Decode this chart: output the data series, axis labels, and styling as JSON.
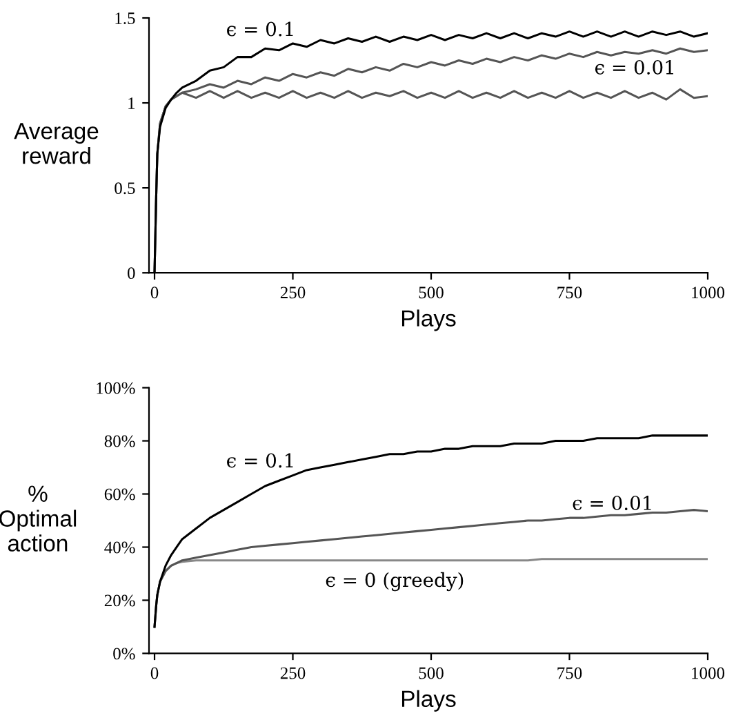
{
  "chart_data": [
    {
      "type": "line",
      "xlabel": "Plays",
      "ylabel": "Average\nreward",
      "x": [
        0,
        3,
        5,
        10,
        20,
        30,
        40,
        50,
        75,
        100,
        125,
        150,
        175,
        200,
        225,
        250,
        275,
        300,
        325,
        350,
        375,
        400,
        425,
        450,
        475,
        500,
        525,
        550,
        575,
        600,
        625,
        650,
        675,
        700,
        725,
        750,
        775,
        800,
        825,
        850,
        875,
        900,
        925,
        950,
        975,
        1000
      ],
      "series": [
        {
          "color": "#555555",
          "values": [
            0,
            0.45,
            0.7,
            0.88,
            0.98,
            1.02,
            1.04,
            1.06,
            1.03,
            1.07,
            1.03,
            1.07,
            1.03,
            1.06,
            1.03,
            1.07,
            1.03,
            1.06,
            1.03,
            1.07,
            1.03,
            1.06,
            1.04,
            1.07,
            1.03,
            1.06,
            1.03,
            1.07,
            1.03,
            1.06,
            1.03,
            1.07,
            1.03,
            1.06,
            1.03,
            1.07,
            1.03,
            1.06,
            1.03,
            1.07,
            1.03,
            1.06,
            1.02,
            1.08,
            1.03,
            1.04
          ]
        },
        {
          "name": "ϵ = 0.01",
          "color": "#555555",
          "values": [
            0,
            0.45,
            0.7,
            0.88,
            0.98,
            1.02,
            1.04,
            1.06,
            1.08,
            1.11,
            1.09,
            1.13,
            1.11,
            1.15,
            1.13,
            1.17,
            1.15,
            1.18,
            1.16,
            1.2,
            1.18,
            1.21,
            1.19,
            1.23,
            1.21,
            1.24,
            1.22,
            1.25,
            1.23,
            1.26,
            1.24,
            1.27,
            1.25,
            1.28,
            1.26,
            1.29,
            1.27,
            1.3,
            1.28,
            1.3,
            1.29,
            1.31,
            1.29,
            1.32,
            1.3,
            1.31
          ]
        },
        {
          "name": "ϵ = 0.1",
          "color": "#000000",
          "values": [
            0,
            0.45,
            0.7,
            0.86,
            0.97,
            1.02,
            1.06,
            1.09,
            1.13,
            1.19,
            1.21,
            1.27,
            1.27,
            1.32,
            1.31,
            1.35,
            1.33,
            1.37,
            1.35,
            1.38,
            1.36,
            1.39,
            1.36,
            1.39,
            1.37,
            1.4,
            1.37,
            1.4,
            1.38,
            1.41,
            1.38,
            1.41,
            1.38,
            1.41,
            1.39,
            1.42,
            1.39,
            1.42,
            1.39,
            1.42,
            1.39,
            1.42,
            1.4,
            1.42,
            1.39,
            1.41
          ]
        }
      ],
      "xlim": [
        -10,
        1000
      ],
      "xticks": [
        0,
        250,
        500,
        750,
        1000
      ],
      "ylim": [
        0,
        1.5
      ],
      "yticks": [
        0,
        0.5,
        1,
        1.5
      ],
      "grid": false,
      "legend": false
    },
    {
      "type": "line",
      "xlabel": "Plays",
      "ylabel": "%\nOptimal\naction",
      "x": [
        0,
        3,
        5,
        10,
        20,
        30,
        40,
        50,
        75,
        100,
        125,
        150,
        175,
        200,
        225,
        250,
        275,
        300,
        325,
        350,
        375,
        400,
        425,
        450,
        475,
        500,
        525,
        550,
        575,
        600,
        625,
        650,
        675,
        700,
        725,
        750,
        775,
        800,
        825,
        850,
        875,
        900,
        925,
        950,
        975,
        1000
      ],
      "series": [
        {
          "name": "ϵ = 0 (greedy)",
          "color": "#888888",
          "values": [
            10,
            18,
            22,
            27,
            31,
            33,
            34,
            34.5,
            35,
            35,
            35,
            35,
            35,
            35,
            35,
            35,
            35,
            35,
            35,
            35,
            35,
            35,
            35,
            35,
            35,
            35,
            35,
            35,
            35,
            35,
            35,
            35,
            35,
            35.5,
            35.5,
            35.5,
            35.5,
            35.5,
            35.5,
            35.5,
            35.5,
            35.5,
            35.5,
            35.5,
            35.5,
            35.5
          ]
        },
        {
          "name": "ϵ = 0.01",
          "color": "#555555",
          "values": [
            10,
            18,
            22,
            27,
            31,
            33,
            34,
            35,
            36,
            37,
            38,
            39,
            40,
            40.5,
            41,
            41.5,
            42,
            42.5,
            43,
            43.5,
            44,
            44.5,
            45,
            45.5,
            46,
            46.5,
            47,
            47.5,
            48,
            48.5,
            49,
            49.5,
            50,
            50,
            50.5,
            51,
            51,
            51.5,
            52,
            52,
            52.5,
            53,
            53,
            53.5,
            54,
            53.5
          ]
        },
        {
          "name": "ϵ = 0.1",
          "color": "#000000",
          "values": [
            10,
            18,
            22,
            27,
            33,
            37,
            40,
            43,
            47,
            51,
            54,
            57,
            60,
            63,
            65,
            67,
            69,
            70,
            71,
            72,
            73,
            74,
            75,
            75,
            76,
            76,
            77,
            77,
            78,
            78,
            78,
            79,
            79,
            79,
            80,
            80,
            80,
            81,
            81,
            81,
            81,
            82,
            82,
            82,
            82,
            82
          ]
        }
      ],
      "xlim": [
        -10,
        1000
      ],
      "xticks": [
        0,
        250,
        500,
        750,
        1000
      ],
      "ylim": [
        0,
        100
      ],
      "yticks": [
        {
          "value": 0,
          "label": "0%"
        },
        {
          "value": 20,
          "label": "20%"
        },
        {
          "value": 40,
          "label": "40%"
        },
        {
          "value": 60,
          "label": "60%"
        },
        {
          "value": 80,
          "label": "80%"
        },
        {
          "value": 100,
          "label": "100%"
        }
      ],
      "grid": false,
      "legend": false
    }
  ]
}
